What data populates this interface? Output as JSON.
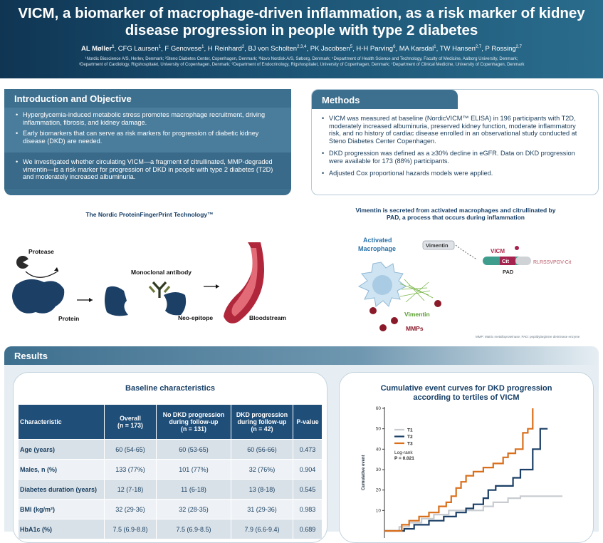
{
  "header": {
    "title": "VICM, a biomarker of macrophage-driven inflammation, as a risk marker of kidney disease progression in people with type 2 diabetes",
    "authors": [
      {
        "name": "AL Møller",
        "sup": "1",
        "bold": true
      },
      {
        "name": "CFG Laursen",
        "sup": "1"
      },
      {
        "name": "F Genovese",
        "sup": "1"
      },
      {
        "name": "H Reinhard",
        "sup": "2"
      },
      {
        "name": "BJ von Scholten",
        "sup": "2,3,4"
      },
      {
        "name": "PK Jacobsen",
        "sup": "5"
      },
      {
        "name": "H-H Parving",
        "sup": "6"
      },
      {
        "name": "MA Karsdal",
        "sup": "1"
      },
      {
        "name": "TW Hansen",
        "sup": "2,7"
      },
      {
        "name": "P Rossing",
        "sup": "2,7"
      }
    ],
    "affiliations_line1": "¹Nordic Bioscience A/S, Herlev, Denmark; ²Steno Diabetes Center, Copenhagen, Denmark; ³Novo Nordisk A/S, Søborg, Denmark; ⁴Department of Health Science and Technology, Faculty of Medicine, Aalborg University, Denmark;",
    "affiliations_line2": "⁵Department of Cardiology, Rigshospitalet, University of Copenhagen, Denmark; ⁶Department of Endocrinology, Rigshospitalet, University of Copenhagen, Denmark; ⁷Department of Clinical Medicine, University of Copenhagen, Denmark"
  },
  "intro": {
    "heading": "Introduction and Objective",
    "bullets1": [
      "Hyperglycemia-induced metabolic stress promotes macrophage recruitment, driving inflammation, fibrosis, and kidney damage.",
      "Early biomarkers that can serve as risk markers for progression of diabetic kidney disease (DKD) are needed."
    ],
    "bullets2": [
      "We investigated whether circulating VICM—a fragment of citrullinated, MMP-degraded vimentin—is a risk marker for progression of DKD in people with type 2 diabetes (T2D) and moderately increased albuminuria."
    ]
  },
  "methods": {
    "heading": "Methods",
    "bullets": [
      "VICM was measured at baseline (NordicVICM™ ELISA) in 196 participants with T2D, moderately increased albuminuria, preserved kidney function, moderate inflammatory risk, and no history of cardiac disease enrolled in an observational study conducted at Steno Diabetes Center Copenhagen.",
      "DKD progression was defined as a ≥30% decline in eGFR. Data on DKD progression were available for 173 (88%) participants.",
      "Adjusted Cox proportional hazards models were applied."
    ]
  },
  "fig1": {
    "title": "The Nordic ProteinFingerPrint Technology™",
    "protease": "Protease",
    "protein": "Protein",
    "antibody": "Monoclonal antibody",
    "neoepitope": "Neo-epitope",
    "bloodstream": "Bloodstream"
  },
  "fig2": {
    "title_line1": "Vimentin is secreted from activated macrophages and citrullinated by",
    "title_line2": "PAD, a process that occurs during inflammation",
    "macrophage_line1": "Activated",
    "macrophage_line2": "Macrophage",
    "vimentin_box": "Vimentin",
    "vicm": "VICM",
    "cit": "Cit",
    "pad": "PAD",
    "sequence": "RLRSSVPGV-Cit",
    "vimentin_label": "Vimentin",
    "mmps": "MMPs",
    "footnote": "MMP: Matrix metalloproteinase; PAD: peptidylarginine deiminase enzyme"
  },
  "results": {
    "heading": "Results",
    "table_title": "Baseline characteristics",
    "columns": [
      "Characteristic",
      "Overall\n(n = 173)",
      "No DKD progression during follow-up\n(n = 131)",
      "DKD progression during follow-up\n(n = 42)",
      "P-value"
    ],
    "rows": [
      [
        "Age (years)",
        "60 (54-65)",
        "60 (53-65)",
        "60 (56-66)",
        "0.473"
      ],
      [
        "Males, n (%)",
        "133 (77%)",
        "101 (77%)",
        "32 (76%)",
        "0.904"
      ],
      [
        "Diabetes duration (years)",
        "12 (7-18)",
        "11 (6-18)",
        "13 (8-18)",
        "0.545"
      ],
      [
        "BMI (kg/m²)",
        "32 (29-36)",
        "32 (28-35)",
        "31 (29-36)",
        "0.983"
      ],
      [
        "HbA1c (%)",
        "7.5 (6.9-8.8)",
        "7.5 (6.9-8.5)",
        "7.9 (6.6-9.4)",
        "0.689"
      ]
    ]
  },
  "chart_data": {
    "type": "line",
    "title": "Cumulative event curves for DKD progression according to tertiles of VICM",
    "xlabel": "",
    "ylabel": "Cumulative event",
    "ylim": [
      0,
      60
    ],
    "yticks": [
      10,
      20,
      30,
      40,
      50,
      60
    ],
    "grid": false,
    "legend_position": "top-left",
    "logrank_label": "Log-rank",
    "pvalue": "P = 0.021",
    "series": [
      {
        "name": "T1",
        "color": "#c8ccd0",
        "points": [
          [
            0,
            0
          ],
          [
            6,
            0
          ],
          [
            6,
            2
          ],
          [
            10,
            2
          ],
          [
            10,
            4
          ],
          [
            15,
            4
          ],
          [
            15,
            6
          ],
          [
            20,
            6
          ],
          [
            20,
            8
          ],
          [
            26,
            8
          ],
          [
            26,
            10
          ],
          [
            40,
            10
          ],
          [
            40,
            12
          ],
          [
            44,
            12
          ],
          [
            44,
            14
          ],
          [
            50,
            14
          ],
          [
            50,
            16
          ],
          [
            55,
            16
          ],
          [
            55,
            17
          ],
          [
            72,
            17
          ]
        ]
      },
      {
        "name": "T2",
        "color": "#1b3f66",
        "points": [
          [
            0,
            0
          ],
          [
            8,
            0
          ],
          [
            8,
            1
          ],
          [
            12,
            1
          ],
          [
            12,
            3
          ],
          [
            18,
            3
          ],
          [
            18,
            5
          ],
          [
            24,
            5
          ],
          [
            24,
            7
          ],
          [
            29,
            7
          ],
          [
            29,
            9
          ],
          [
            33,
            9
          ],
          [
            33,
            11
          ],
          [
            36,
            11
          ],
          [
            36,
            13
          ],
          [
            40,
            13
          ],
          [
            40,
            16
          ],
          [
            42,
            16
          ],
          [
            42,
            20
          ],
          [
            45,
            20
          ],
          [
            45,
            22
          ],
          [
            52,
            22
          ],
          [
            52,
            26
          ],
          [
            55,
            26
          ],
          [
            55,
            30
          ],
          [
            60,
            30
          ],
          [
            60,
            40
          ],
          [
            63,
            40
          ],
          [
            63,
            50
          ],
          [
            66,
            50
          ]
        ]
      },
      {
        "name": "T3",
        "color": "#d96f1b",
        "points": [
          [
            0,
            0
          ],
          [
            7,
            0
          ],
          [
            7,
            3
          ],
          [
            10,
            3
          ],
          [
            10,
            5
          ],
          [
            14,
            5
          ],
          [
            14,
            7
          ],
          [
            18,
            7
          ],
          [
            18,
            9
          ],
          [
            22,
            9
          ],
          [
            22,
            12
          ],
          [
            25,
            12
          ],
          [
            25,
            14
          ],
          [
            27,
            14
          ],
          [
            27,
            17
          ],
          [
            29,
            17
          ],
          [
            29,
            21
          ],
          [
            31,
            21
          ],
          [
            31,
            24
          ],
          [
            33,
            24
          ],
          [
            33,
            27
          ],
          [
            36,
            27
          ],
          [
            36,
            29
          ],
          [
            40,
            29
          ],
          [
            40,
            31
          ],
          [
            44,
            31
          ],
          [
            44,
            33
          ],
          [
            48,
            33
          ],
          [
            48,
            36
          ],
          [
            50,
            36
          ],
          [
            50,
            38
          ],
          [
            53,
            38
          ],
          [
            53,
            40
          ],
          [
            56,
            40
          ],
          [
            56,
            48
          ],
          [
            58,
            48
          ],
          [
            58,
            50
          ],
          [
            60,
            50
          ],
          [
            60,
            60
          ]
        ]
      }
    ]
  }
}
